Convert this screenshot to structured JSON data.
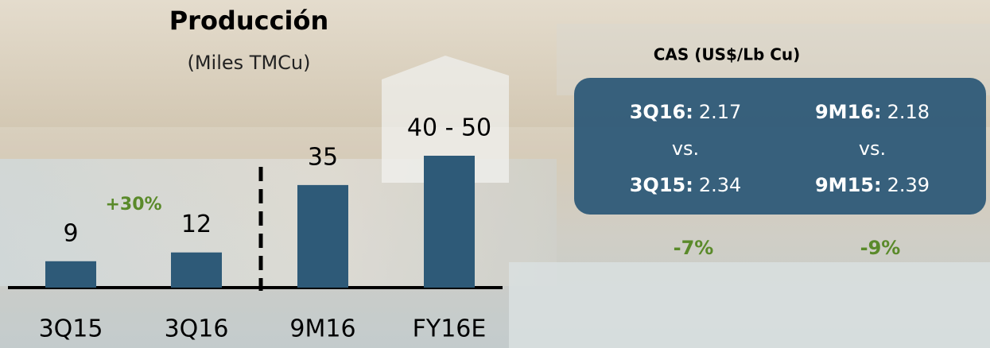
{
  "chart_data": {
    "type": "bar",
    "title": "Producción",
    "subtitle": "(Miles TMCu)",
    "categories": [
      "3Q15",
      "3Q16",
      "9M16",
      "FY16E"
    ],
    "values": [
      9,
      12,
      35,
      45
    ],
    "value_labels": [
      "9",
      "12",
      "35",
      "40 - 50"
    ],
    "color": "#2e5a78",
    "annotations": [
      {
        "text": "+30%",
        "color": "#5a8a2a"
      }
    ]
  },
  "cas_panel": {
    "title": "CAS (US$/Lb Cu)",
    "comparisons": [
      {
        "current_label": "3Q16:",
        "current_value": 2.17,
        "connector": "vs.",
        "previous_label": "3Q15:",
        "previous_value": 2.34,
        "change": "-7%"
      },
      {
        "current_label": "9M16:",
        "current_value": 2.18,
        "connector": "vs.",
        "previous_label": "9M15:",
        "previous_value": 2.39,
        "change": "-9%"
      }
    ]
  }
}
